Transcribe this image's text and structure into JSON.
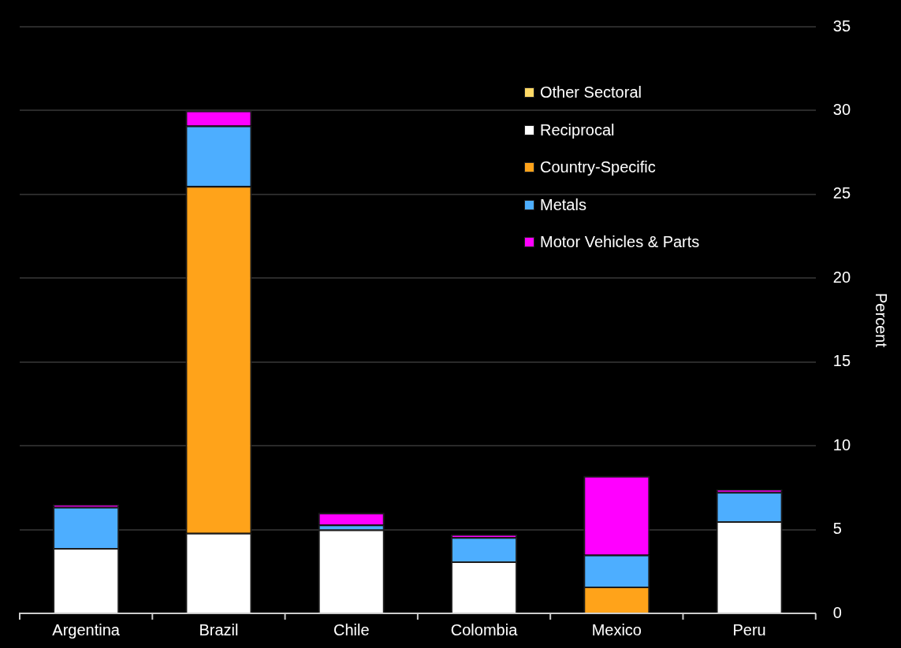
{
  "chart_data": {
    "type": "bar",
    "stacked": true,
    "ylabel": "Percent",
    "categories": [
      "Argentina",
      "Brazil",
      "Chile",
      "Colombia",
      "Mexico",
      "Peru"
    ],
    "series": [
      {
        "name": "Other Sectoral",
        "color": "#ffd966",
        "values": [
          0,
          0,
          0,
          0,
          0,
          0
        ]
      },
      {
        "name": "Reciprocal",
        "color": "#ffffff",
        "values": [
          3.9,
          4.8,
          5.0,
          3.1,
          0,
          5.5
        ]
      },
      {
        "name": "Country-Specific",
        "color": "#ffa31a",
        "values": [
          0,
          20.7,
          0,
          0,
          1.6,
          0
        ]
      },
      {
        "name": "Metals",
        "color": "#4daeff",
        "values": [
          2.45,
          3.6,
          0.3,
          1.45,
          1.9,
          1.75
        ]
      },
      {
        "name": "Motor Vehicles & Parts",
        "color": "#ff00ff",
        "values": [
          0.15,
          0.9,
          0.7,
          0.15,
          4.7,
          0.15
        ]
      }
    ],
    "ylim": [
      0,
      35
    ],
    "yticks": [
      0,
      5,
      10,
      15,
      20,
      25,
      30,
      35
    ],
    "grid": "y",
    "legend": "top right"
  }
}
